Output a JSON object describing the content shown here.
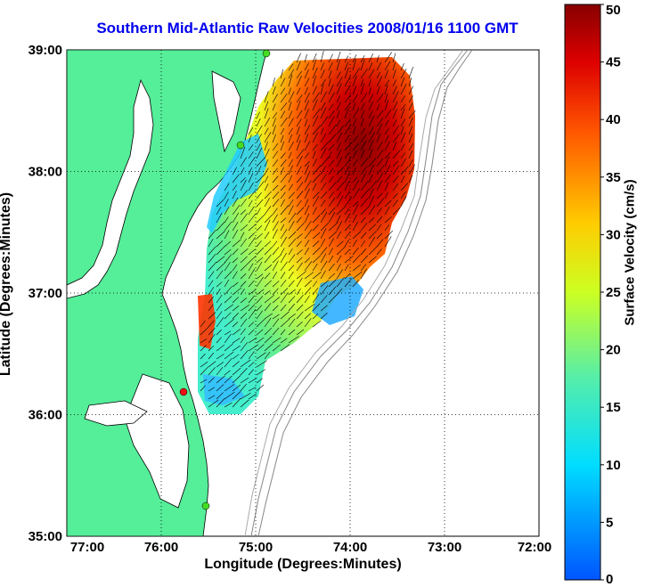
{
  "title": "Southern Mid-Atlantic Raw Velocities 2008/01/16 1100 GMT",
  "xlabel": "Longitude (Degrees:Minutes)",
  "ylabel": "Latitude (Degrees:Minutes)",
  "colorbar": {
    "label": "Surface Velocity (cm/s)",
    "ticks": [
      "50",
      "45",
      "40",
      "35",
      "30",
      "25",
      "20",
      "15",
      "10",
      "5",
      "0"
    ],
    "min": 0,
    "max": 50
  },
  "map": {
    "x_ticks": [
      "77:00",
      "76:00",
      "75:00",
      "74:00",
      "73:00",
      "72:00"
    ],
    "y_ticks": [
      "39:00",
      "38:00",
      "37:00",
      "36:00",
      "35:00"
    ],
    "xlim": [
      -77,
      -72
    ],
    "ylim": [
      35,
      39
    ],
    "grid": "dotted",
    "land_color": "#55ee99",
    "coast_color": "#000000",
    "bathymetry_color": "#888888"
  },
  "stations": [
    {
      "color": "#44dd22"
    },
    {
      "color": "#44dd22"
    },
    {
      "color": "#ee1111"
    },
    {
      "color": "#44dd22"
    }
  ]
}
